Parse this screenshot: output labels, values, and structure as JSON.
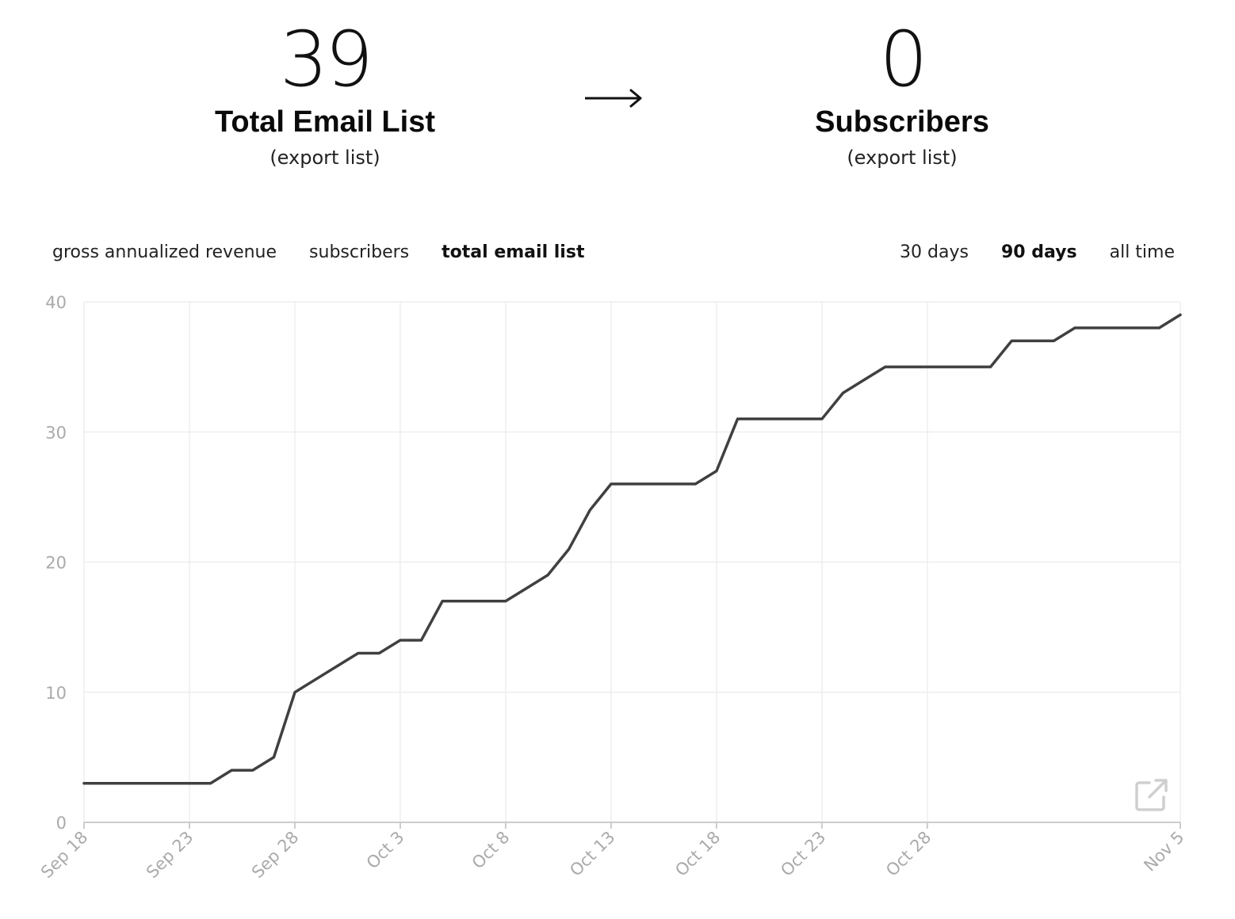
{
  "stats": {
    "left": {
      "number": "39",
      "label": "Total Email List",
      "link": "(export list)"
    },
    "right": {
      "number": "0",
      "label": "Subscribers",
      "link": "(export list)"
    },
    "arrow_icon": "right-arrow-icon"
  },
  "metric_tabs": [
    {
      "label": "gross annualized revenue",
      "active": false
    },
    {
      "label": "subscribers",
      "active": false
    },
    {
      "label": "total email list",
      "active": true
    }
  ],
  "range_tabs": [
    {
      "label": "30 days",
      "active": false
    },
    {
      "label": "90 days",
      "active": true
    },
    {
      "label": "all time",
      "active": false
    }
  ],
  "colors": {
    "line": "#404040",
    "grid": "#eeeeee",
    "axis": "#cccccc",
    "tick_label": "#aaaaaa"
  },
  "icons": {
    "open_external": "external-link-icon"
  },
  "chart_data": {
    "type": "line",
    "x_start": "Sep 18",
    "x_end": "Nov 5",
    "x_tick_labels": [
      "Sep 18",
      "Sep 23",
      "Sep 28",
      "Oct 3",
      "Oct 8",
      "Oct 13",
      "Oct 18",
      "Oct 23",
      "Oct 28",
      "Nov 5"
    ],
    "y_tick_labels": [
      "0",
      "10",
      "20",
      "30",
      "40"
    ],
    "ylim": [
      0,
      40
    ],
    "grid": true,
    "series": [
      {
        "values": [
          3,
          3,
          3,
          3,
          3,
          3,
          3,
          4,
          4,
          5,
          10,
          11,
          12,
          13,
          13,
          14,
          14,
          17,
          17,
          17,
          17,
          18,
          19,
          21,
          24,
          26,
          26,
          26,
          26,
          26,
          27,
          31,
          31,
          31,
          31,
          31,
          33,
          34,
          35,
          35,
          35,
          35,
          35,
          35,
          37,
          37,
          37,
          38,
          38,
          38,
          38,
          38,
          39
        ]
      }
    ]
  }
}
